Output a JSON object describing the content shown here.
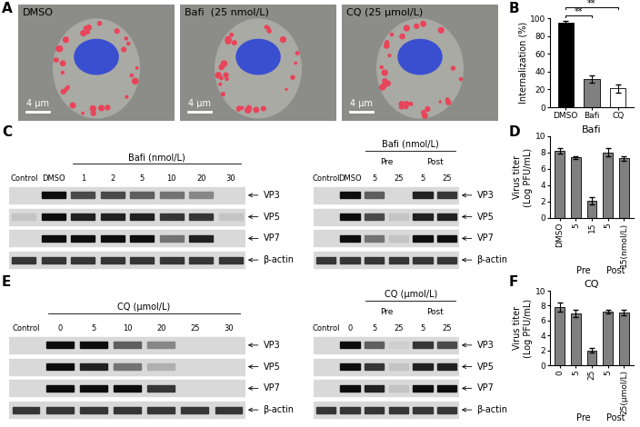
{
  "panel_labels": [
    "A",
    "B",
    "C",
    "D",
    "E",
    "F"
  ],
  "images": [
    {
      "label": "DMSO",
      "scale_bar": "4 μm"
    },
    {
      "label": "Bafi  (25 nmol/L)",
      "scale_bar": "4 μm"
    },
    {
      "label": "CQ (25 μmol/L)",
      "scale_bar": "4 μm"
    }
  ],
  "blots": [
    {
      "panel": "C",
      "lanes": [
        "Control",
        "DMSO",
        "1",
        "2",
        "5",
        "10",
        "20",
        "30"
      ],
      "header": "Bafi (nmol/L)",
      "header_lanes": [
        2,
        7
      ],
      "groups": [],
      "rows": [
        {
          "label": "VP3",
          "intensity": [
            0,
            1,
            0.7,
            0.7,
            0.6,
            0.5,
            0.4,
            0
          ]
        },
        {
          "label": "VP5",
          "intensity": [
            0.1,
            1,
            0.9,
            0.9,
            0.9,
            0.8,
            0.8,
            0.1
          ]
        },
        {
          "label": "VP7",
          "intensity": [
            0,
            1,
            1,
            1,
            1,
            0.5,
            0.9,
            0
          ]
        },
        {
          "label": "β-actin",
          "intensity": [
            0.8,
            0.8,
            0.8,
            0.8,
            0.8,
            0.8,
            0.8,
            0.8
          ]
        }
      ]
    },
    {
      "panel": "C",
      "lanes": [
        "Control",
        "DMSO",
        "5",
        "25",
        "5",
        "25"
      ],
      "header": "Bafi (nmol/L)",
      "header_lanes": [
        2,
        5
      ],
      "groups": [
        {
          "label": "Pre",
          "lanes": [
            2,
            3
          ]
        },
        {
          "label": "Post",
          "lanes": [
            4,
            5
          ]
        }
      ],
      "rows": [
        {
          "label": "VP3",
          "intensity": [
            0,
            1,
            0.6,
            0,
            0.9,
            0.8
          ]
        },
        {
          "label": "VP5",
          "intensity": [
            0,
            1,
            0.7,
            0.1,
            0.9,
            0.9
          ]
        },
        {
          "label": "VP7",
          "intensity": [
            0,
            1,
            0.5,
            0.1,
            1,
            1
          ]
        },
        {
          "label": "β-actin",
          "intensity": [
            0.8,
            0.8,
            0.8,
            0.8,
            0.8,
            0.8
          ]
        }
      ]
    },
    {
      "panel": "E",
      "lanes": [
        "Control",
        "0",
        "5",
        "10",
        "20",
        "25",
        "30"
      ],
      "header": "CQ (μmol/L)",
      "header_lanes": [
        1,
        6
      ],
      "groups": [],
      "rows": [
        {
          "label": "VP3",
          "intensity": [
            0,
            1,
            1,
            0.6,
            0.4,
            0,
            0
          ]
        },
        {
          "label": "VP5",
          "intensity": [
            0,
            1,
            0.9,
            0.5,
            0.2,
            0,
            0
          ]
        },
        {
          "label": "VP7",
          "intensity": [
            0,
            1,
            1,
            1,
            0.8,
            0,
            0
          ]
        },
        {
          "label": "β-actin",
          "intensity": [
            0.8,
            0.8,
            0.8,
            0.8,
            0.8,
            0.8,
            0.8
          ]
        }
      ]
    },
    {
      "panel": "E",
      "lanes": [
        "Control",
        "0",
        "5",
        "25",
        "5",
        "25"
      ],
      "header": "CQ (μmol/L)",
      "header_lanes": [
        2,
        5
      ],
      "groups": [
        {
          "label": "Pre",
          "lanes": [
            2,
            3
          ]
        },
        {
          "label": "Post",
          "lanes": [
            4,
            5
          ]
        }
      ],
      "rows": [
        {
          "label": "VP3",
          "intensity": [
            0,
            1,
            0.6,
            0.05,
            0.8,
            0.7
          ]
        },
        {
          "label": "VP5",
          "intensity": [
            0,
            1,
            0.8,
            0.1,
            0.9,
            0.9
          ]
        },
        {
          "label": "VP7",
          "intensity": [
            0,
            1,
            0.9,
            0.1,
            1,
            1
          ]
        },
        {
          "label": "β-actin",
          "intensity": [
            0.8,
            0.8,
            0.8,
            0.8,
            0.8,
            0.8
          ]
        }
      ]
    }
  ],
  "chart_data": [
    {
      "type": "bar",
      "categories": [
        "DMSO",
        "Bafi",
        "CQ"
      ],
      "values": [
        95,
        32,
        21
      ],
      "errors": [
        2,
        4,
        5
      ],
      "colors": [
        "#000000",
        "#808080",
        "#ffffff"
      ],
      "y_label": "Internalization (%)",
      "ylim": [
        0,
        100
      ],
      "yticks": [
        0,
        20,
        40,
        60,
        80,
        100
      ],
      "grid": false,
      "annotations": [
        {
          "text": "**",
          "between": [
            0,
            1
          ]
        },
        {
          "text": "**",
          "between": [
            0,
            2
          ]
        }
      ]
    },
    {
      "type": "bar",
      "title": "Bafi",
      "categories": [
        "DMSO",
        "5",
        "15",
        "5",
        "15(nmol/L)"
      ],
      "values": [
        8.2,
        7.4,
        2.1,
        8.0,
        7.3
      ],
      "errors": [
        0.3,
        0.2,
        0.4,
        0.5,
        0.3
      ],
      "color": "#808080",
      "y_label": "Virus titer\n(Log PFU/mL)",
      "ylim": [
        0,
        10
      ],
      "yticks": [
        0,
        2,
        4,
        6,
        8,
        10
      ],
      "grid": false,
      "groups": [
        {
          "label": "Pre",
          "categories": [
            1,
            2
          ]
        },
        {
          "label": "Post",
          "categories": [
            3,
            4
          ]
        }
      ]
    },
    {
      "type": "bar",
      "title": "CQ",
      "categories": [
        "0",
        "5",
        "25",
        "5",
        "25(μmol/L)"
      ],
      "values": [
        7.8,
        7.0,
        2.0,
        7.2,
        7.1
      ],
      "errors": [
        0.6,
        0.5,
        0.3,
        0.2,
        0.4
      ],
      "color": "#808080",
      "y_label": "Virus titer\n(Log PFU/mL)",
      "ylim": [
        0,
        10
      ],
      "yticks": [
        0,
        2,
        4,
        6,
        8,
        10
      ],
      "grid": false,
      "groups": [
        {
          "label": "Pre",
          "categories": [
            1,
            2
          ]
        },
        {
          "label": "Post",
          "categories": [
            3,
            4
          ]
        }
      ]
    }
  ]
}
